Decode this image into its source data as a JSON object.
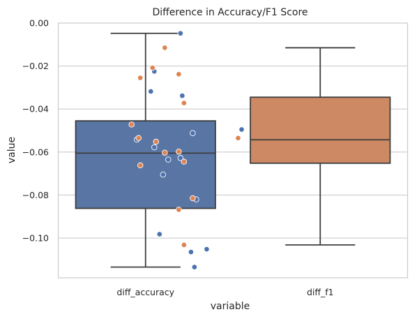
{
  "chart_data": {
    "type": "boxplot",
    "title": "Difference in Accuracy/F1 Score",
    "xlabel": "variable",
    "ylabel": "value",
    "categories": [
      "diff_accuracy",
      "diff_f1"
    ],
    "ylim": [
      -0.1185,
      0.0
    ],
    "yticks": [
      0.0,
      -0.02,
      -0.04,
      -0.06,
      -0.08,
      -0.1
    ],
    "ytick_labels": [
      "0.00",
      "−0.02",
      "−0.04",
      "−0.06",
      "−0.08",
      "−0.10"
    ],
    "grid": "horizontal",
    "boxes": [
      {
        "category": "diff_accuracy",
        "color": "#5875a4",
        "whisker_low": -0.1135,
        "q1": -0.0862,
        "median": -0.0605,
        "q3": -0.0455,
        "whisker_high": -0.0048
      },
      {
        "category": "diff_f1",
        "color": "#cc8963",
        "whisker_low": -0.1032,
        "q1": -0.0652,
        "median": -0.0543,
        "q3": -0.0345,
        "whisker_high": -0.0115
      }
    ],
    "points": [
      {
        "series": "diff_accuracy",
        "color": "#4c72b0",
        "x": 0.2,
        "y": -0.0048
      },
      {
        "series": "diff_accuracy",
        "color": "#4c72b0",
        "x": 0.05,
        "y": -0.0225
      },
      {
        "series": "diff_accuracy",
        "color": "#4c72b0",
        "x": 0.03,
        "y": -0.0318
      },
      {
        "series": "diff_accuracy",
        "color": "#4c72b0",
        "x": 0.21,
        "y": -0.0338
      },
      {
        "series": "diff_accuracy",
        "color": "#4c72b0",
        "x": 0.55,
        "y": -0.0495
      },
      {
        "series": "diff_accuracy",
        "color": "#4c72b0",
        "x": 0.27,
        "y": -0.0512
      },
      {
        "series": "diff_accuracy",
        "color": "#4c72b0",
        "x": -0.05,
        "y": -0.0542
      },
      {
        "series": "diff_accuracy",
        "color": "#4c72b0",
        "x": 0.05,
        "y": -0.0578
      },
      {
        "series": "diff_accuracy",
        "color": "#4c72b0",
        "x": 0.2,
        "y": -0.0628
      },
      {
        "series": "diff_accuracy",
        "color": "#4c72b0",
        "x": 0.13,
        "y": -0.0635
      },
      {
        "series": "diff_accuracy",
        "color": "#4c72b0",
        "x": 0.1,
        "y": -0.0705
      },
      {
        "series": "diff_accuracy",
        "color": "#4c72b0",
        "x": 0.29,
        "y": -0.082
      },
      {
        "series": "diff_accuracy",
        "color": "#4c72b0",
        "x": 0.08,
        "y": -0.0982
      },
      {
        "series": "diff_accuracy",
        "color": "#4c72b0",
        "x": 0.35,
        "y": -0.1052
      },
      {
        "series": "diff_accuracy",
        "color": "#4c72b0",
        "x": 0.26,
        "y": -0.1065
      },
      {
        "series": "diff_accuracy",
        "color": "#4c72b0",
        "x": 0.28,
        "y": -0.1135
      },
      {
        "series": "diff_f1",
        "color": "#dd8452",
        "x": 0.11,
        "y": -0.0115
      },
      {
        "series": "diff_f1",
        "color": "#dd8452",
        "x": 0.04,
        "y": -0.0208
      },
      {
        "series": "diff_f1",
        "color": "#dd8452",
        "x": 0.19,
        "y": -0.0238
      },
      {
        "series": "diff_f1",
        "color": "#dd8452",
        "x": -0.03,
        "y": -0.0255
      },
      {
        "series": "diff_f1",
        "color": "#dd8452",
        "x": 0.22,
        "y": -0.0372
      },
      {
        "series": "diff_f1",
        "color": "#dd8452",
        "x": -0.08,
        "y": -0.0472
      },
      {
        "series": "diff_f1",
        "color": "#dd8452",
        "x": 0.53,
        "y": -0.0535
      },
      {
        "series": "diff_f1",
        "color": "#dd8452",
        "x": -0.04,
        "y": -0.0535
      },
      {
        "series": "diff_f1",
        "color": "#dd8452",
        "x": 0.06,
        "y": -0.0552
      },
      {
        "series": "diff_f1",
        "color": "#dd8452",
        "x": 0.19,
        "y": -0.0598
      },
      {
        "series": "diff_f1",
        "color": "#dd8452",
        "x": 0.11,
        "y": -0.0603
      },
      {
        "series": "diff_f1",
        "color": "#dd8452",
        "x": 0.22,
        "y": -0.0645
      },
      {
        "series": "diff_f1",
        "color": "#dd8452",
        "x": -0.03,
        "y": -0.0662
      },
      {
        "series": "diff_f1",
        "color": "#dd8452",
        "x": 0.27,
        "y": -0.0815
      },
      {
        "series": "diff_f1",
        "color": "#dd8452",
        "x": 0.19,
        "y": -0.0868
      },
      {
        "series": "diff_f1",
        "color": "#dd8452",
        "x": 0.22,
        "y": -0.1032
      }
    ]
  }
}
